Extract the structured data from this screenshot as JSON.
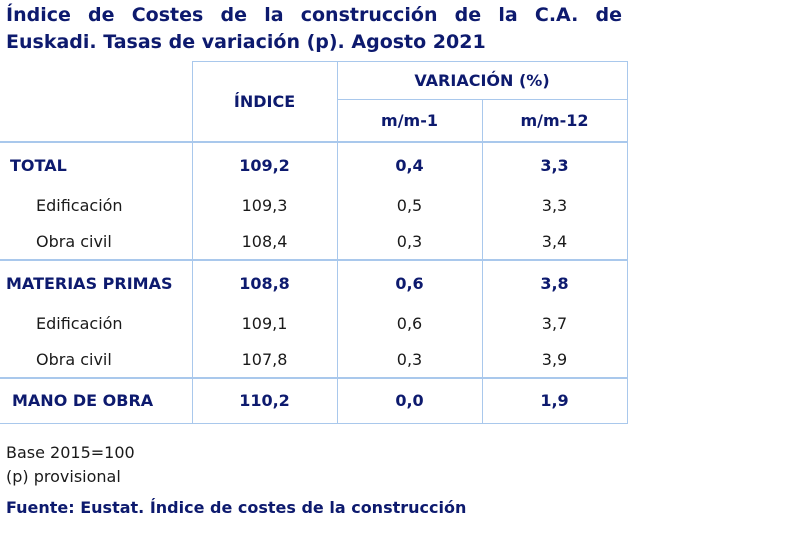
{
  "title": "Índice de Costes de la construcción de la C.A. de Euskadi. Tasas de variación (p). Agosto 2021",
  "table": {
    "headers": {
      "index": "ÍNDICE",
      "variation": "VARIACIÓN (%)",
      "mm1": "m/m-1",
      "mm12": "m/m-12"
    },
    "rows": [
      {
        "label": "TOTAL",
        "index": "109,2",
        "mm1": "0,4",
        "mm12": "3,3"
      },
      {
        "label": "Edificación",
        "index": "109,3",
        "mm1": "0,5",
        "mm12": "3,3"
      },
      {
        "label": "Obra civil",
        "index": "108,4",
        "mm1": "0,3",
        "mm12": "3,4"
      },
      {
        "label": "MATERIAS PRIMAS",
        "index": "108,8",
        "mm1": "0,6",
        "mm12": "3,8"
      },
      {
        "label": "Edificación",
        "index": "109,1",
        "mm1": "0,6",
        "mm12": "3,7"
      },
      {
        "label": "Obra civil",
        "index": "107,8",
        "mm1": "0,3",
        "mm12": "3,9"
      },
      {
        "label": "MANO DE OBRA",
        "index": "110,2",
        "mm1": "0,0",
        "mm12": "1,9"
      }
    ]
  },
  "notes": {
    "base": "Base 2015=100",
    "provisional": "(p) provisional"
  },
  "source": "Fuente: Eustat. Índice de costes de la construcción"
}
